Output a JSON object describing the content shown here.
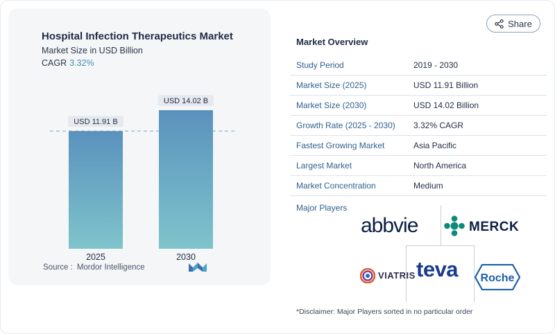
{
  "chart_data": {
    "type": "bar",
    "title": "Hospital Infection Therapeutics Market",
    "subtitle": "Market Size in USD Billion",
    "cagr_label": "CAGR",
    "cagr_value": "3.32%",
    "categories": [
      "2025",
      "2030"
    ],
    "values": [
      11.91,
      14.02
    ],
    "data_labels": [
      "USD 11.91 B",
      "USD 14.02 B"
    ],
    "ylim": [
      0,
      14.02
    ],
    "reference_line_value": 11.91,
    "colors": {
      "bar_top": "#5a92bd",
      "bar_bottom": "#7fc4cc",
      "label_bg": "#e6e9ed",
      "dashed_line": "#8bb8cc"
    }
  },
  "source": {
    "label": "Source :",
    "value": "Mordor Intelligence"
  },
  "share_button": {
    "label": "Share",
    "icon": "share-icon"
  },
  "overview": {
    "title": "Market Overview",
    "rows": [
      {
        "key": "Study Period",
        "value": "2019 - 2030"
      },
      {
        "key": "Market Size (2025)",
        "value": "USD 11.91 Billion"
      },
      {
        "key": "Market Size (2030)",
        "value": "USD 14.02 Billion"
      },
      {
        "key": "Growth Rate (2025 - 2030)",
        "value": "3.32% CAGR"
      },
      {
        "key": "Fastest Growing Market",
        "value": "Asia Pacific"
      },
      {
        "key": "Largest Market",
        "value": "North America"
      },
      {
        "key": "Market Concentration",
        "value": "Medium"
      }
    ],
    "major_players_label": "Major Players",
    "players": [
      "abbvie",
      "MERCK",
      "VIATRIS",
      "teva",
      "Roche"
    ]
  },
  "disclaimer": "*Disclaimer: Major Players sorted in no particular order"
}
